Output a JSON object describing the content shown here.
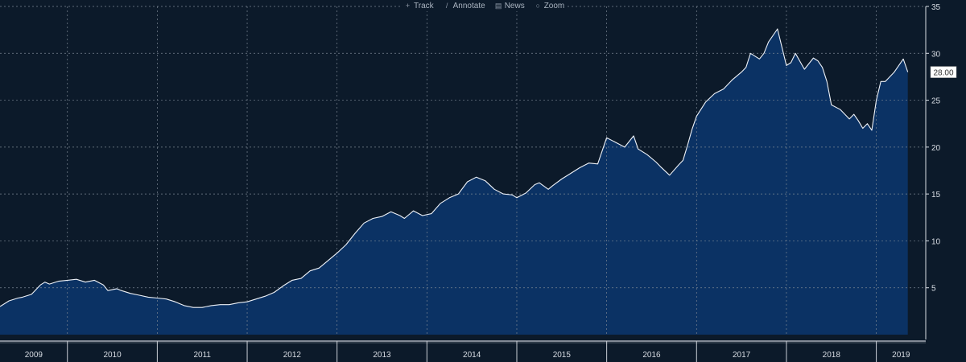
{
  "toolbar": {
    "items": [
      {
        "label": "Track",
        "icon": "crosshair-icon",
        "glyph": "+"
      },
      {
        "label": "Annotate",
        "icon": "pencil-icon",
        "glyph": "/"
      },
      {
        "label": "News",
        "icon": "news-icon",
        "glyph": "▤"
      },
      {
        "label": "Zoom",
        "icon": "magnifier-icon",
        "glyph": "○"
      }
    ]
  },
  "last_price_label": "28.00",
  "colors": {
    "background": "#0c1a2a",
    "area_fill": "#0b3264",
    "line": "#eef2f8",
    "grid": "#7a8592",
    "axis_text": "#d8dde4",
    "price_badge_bg": "#ffffff",
    "price_badge_text": "#333333"
  },
  "chart_data": {
    "type": "area",
    "title": "",
    "xlabel": "",
    "ylabel": "",
    "x_tick_labels": [
      "2009",
      "2010",
      "2011",
      "2012",
      "2013",
      "2014",
      "2015",
      "2016",
      "2017",
      "2018",
      "2019"
    ],
    "y_ticks": [
      5,
      10,
      15,
      20,
      25,
      30,
      35
    ],
    "ylim": [
      0,
      35
    ],
    "xlim": [
      2009.25,
      2019.55
    ],
    "grid": true,
    "y_axis_side": "right",
    "series": [
      {
        "x": [
          2009.25,
          2009.35,
          2009.45,
          2009.5,
          2009.6,
          2009.7,
          2009.75,
          2009.8,
          2009.9,
          2010.0,
          2010.1,
          2010.2,
          2010.3,
          2010.4,
          2010.45,
          2010.55,
          2010.6,
          2010.7,
          2010.8,
          2010.9,
          2011.0,
          2011.1,
          2011.2,
          2011.3,
          2011.4,
          2011.5,
          2011.6,
          2011.7,
          2011.8,
          2011.9,
          2012.0,
          2012.1,
          2012.2,
          2012.3,
          2012.4,
          2012.5,
          2012.6,
          2012.7,
          2012.8,
          2012.9,
          2013.0,
          2013.1,
          2013.2,
          2013.3,
          2013.4,
          2013.5,
          2013.6,
          2013.7,
          2013.75,
          2013.85,
          2013.95,
          2014.05,
          2014.15,
          2014.25,
          2014.35,
          2014.45,
          2014.55,
          2014.65,
          2014.75,
          2014.85,
          2014.95,
          2015.0,
          2015.1,
          2015.2,
          2015.25,
          2015.35,
          2015.4,
          2015.5,
          2015.6,
          2015.7,
          2015.8,
          2015.9,
          2016.0,
          2016.1,
          2016.2,
          2016.3,
          2016.35,
          2016.45,
          2016.55,
          2016.6,
          2016.7,
          2016.8,
          2016.85,
          2016.9,
          2016.95,
          2017.0,
          2017.1,
          2017.2,
          2017.3,
          2017.4,
          2017.5,
          2017.55,
          2017.6,
          2017.7,
          2017.75,
          2017.8,
          2017.9,
          2018.0,
          2018.05,
          2018.1,
          2018.2,
          2018.3,
          2018.35,
          2018.4,
          2018.45,
          2018.5,
          2018.6,
          2018.7,
          2018.75,
          2018.8,
          2018.85,
          2018.9,
          2018.95,
          2019.0,
          2019.05,
          2019.1,
          2019.2,
          2019.25,
          2019.3,
          2019.35
        ],
        "values": [
          3.0,
          3.6,
          3.9,
          4.0,
          4.3,
          5.3,
          5.6,
          5.4,
          5.7,
          5.8,
          5.9,
          5.6,
          5.8,
          5.3,
          4.7,
          4.9,
          4.7,
          4.4,
          4.2,
          4.0,
          3.9,
          3.8,
          3.5,
          3.1,
          2.9,
          2.9,
          3.1,
          3.2,
          3.2,
          3.4,
          3.5,
          3.8,
          4.1,
          4.5,
          5.2,
          5.8,
          6.0,
          6.8,
          7.1,
          7.9,
          8.7,
          9.6,
          10.8,
          11.9,
          12.4,
          12.6,
          13.1,
          12.7,
          12.4,
          13.2,
          12.7,
          12.9,
          14.0,
          14.6,
          15.0,
          16.3,
          16.8,
          16.4,
          15.5,
          15.0,
          14.9,
          14.6,
          15.1,
          16.0,
          16.2,
          15.5,
          15.9,
          16.6,
          17.2,
          17.8,
          18.3,
          18.2,
          21.0,
          20.5,
          20.0,
          21.2,
          19.8,
          19.2,
          18.4,
          17.9,
          17.0,
          18.1,
          18.6,
          20.2,
          21.9,
          23.3,
          24.8,
          25.7,
          26.2,
          27.2,
          28.0,
          28.5,
          30.0,
          29.4,
          30.0,
          31.2,
          32.6,
          28.7,
          29.0,
          30.0,
          28.3,
          29.5,
          29.2,
          28.5,
          27.0,
          24.5,
          24.0,
          23.0,
          23.5,
          22.8,
          22.0,
          22.5,
          21.8,
          25.0,
          27.0,
          27.0,
          28.0,
          28.7,
          29.4,
          28.0
        ]
      }
    ]
  }
}
